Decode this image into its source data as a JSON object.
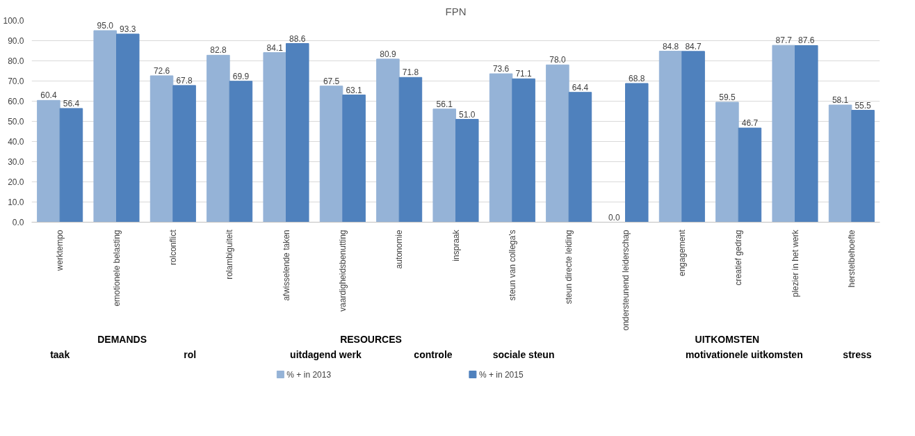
{
  "chart_data": {
    "type": "bar",
    "title": "FPN",
    "categories": [
      "werktempo",
      "emotionele belasting",
      "rolconflict",
      "rolambiguiteit",
      "afwisselende taken",
      "vaardigheidsbenutting",
      "autonomie",
      "inspraak",
      "steun van collega's",
      "steun directe leiding",
      "ondersteunend leiderschap",
      "engagement",
      "creatief gedrag",
      "plezier in het werk",
      "herstelbehoefte"
    ],
    "series": [
      {
        "name": "% + in 2013",
        "color": "#95b3d7",
        "values": [
          60.4,
          95.0,
          72.6,
          82.8,
          84.1,
          67.5,
          80.9,
          56.1,
          73.6,
          78.0,
          0.0,
          84.8,
          59.5,
          87.7,
          58.1
        ],
        "value_labels": [
          "60.4",
          "95.0",
          "72.6",
          "82.8",
          "84.1",
          "67.5",
          "80.9",
          "56.1",
          "73.6",
          "78.0",
          "0.0",
          "84.8",
          "59.5",
          "87.7",
          "58.1"
        ]
      },
      {
        "name": "% + in 2015",
        "color": "#4f81bd",
        "values": [
          56.4,
          93.3,
          67.8,
          69.9,
          88.6,
          63.1,
          71.8,
          51.0,
          71.1,
          64.4,
          68.8,
          84.7,
          46.7,
          87.6,
          55.5
        ],
        "value_labels": [
          "56.4",
          "93.3",
          "67.8",
          "69.9",
          "88.6",
          "63.1",
          "71.8",
          "51.0",
          "71.1",
          "64.4",
          "68.8",
          "84.7",
          "46.7",
          "87.6",
          "55.5"
        ]
      }
    ],
    "ylim": [
      0,
      100
    ],
    "yticks": [
      {
        "value": 0,
        "label": "0.0"
      },
      {
        "value": 10,
        "label": "10.0"
      },
      {
        "value": 20,
        "label": "20.0"
      },
      {
        "value": 30,
        "label": "30.0"
      },
      {
        "value": 40,
        "label": "40.0"
      },
      {
        "value": 50,
        "label": "50.0"
      },
      {
        "value": 60,
        "label": "60.0"
      },
      {
        "value": 70,
        "label": "70.0"
      },
      {
        "value": 80,
        "label": "80.0"
      },
      {
        "value": 90,
        "label": "90.0"
      },
      {
        "value": 100,
        "label": "100.0"
      }
    ],
    "grid": "y",
    "legend": "bottom",
    "annotations": [
      "DEMANDS",
      "RESOURCES",
      "UITKOMSTEN",
      "taak",
      "rol",
      "uitdagend werk",
      "controle",
      "sociale steun",
      "motivationele uitkomsten",
      "stress"
    ]
  }
}
